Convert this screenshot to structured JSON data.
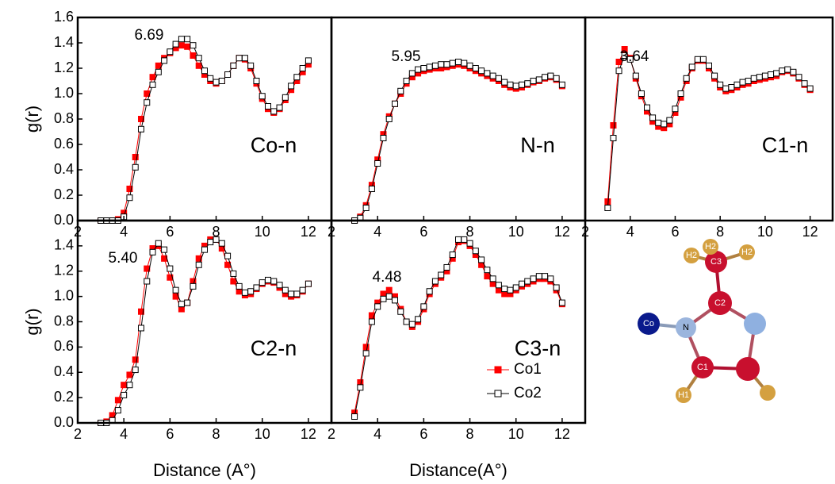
{
  "chart_data": [
    {
      "type": "line",
      "label": "Co-n",
      "annotation": "6.69",
      "y_label": "g(r)",
      "legend": false,
      "x": [
        3,
        3.25,
        3.5,
        3.75,
        4,
        4.25,
        4.5,
        4.75,
        5,
        5.25,
        5.5,
        5.75,
        6,
        6.25,
        6.5,
        6.75,
        7,
        7.25,
        7.5,
        7.75,
        8,
        8.25,
        8.5,
        8.75,
        9,
        9.25,
        9.5,
        9.75,
        10,
        10.25,
        10.5,
        10.75,
        11,
        11.25,
        11.5,
        11.75,
        12
      ],
      "series": [
        {
          "name": "Co1",
          "color": "#ff0000",
          "values": [
            0,
            0,
            0,
            0.01,
            0.06,
            0.25,
            0.5,
            0.8,
            1.0,
            1.13,
            1.22,
            1.28,
            1.32,
            1.36,
            1.38,
            1.37,
            1.3,
            1.22,
            1.15,
            1.1,
            1.08,
            1.1,
            1.15,
            1.22,
            1.28,
            1.27,
            1.2,
            1.08,
            0.96,
            0.88,
            0.85,
            0.88,
            0.95,
            1.03,
            1.1,
            1.17,
            1.23
          ]
        },
        {
          "name": "Co2",
          "color": "#000000",
          "values": [
            0,
            0,
            0,
            0,
            0.03,
            0.18,
            0.42,
            0.72,
            0.93,
            1.07,
            1.17,
            1.26,
            1.33,
            1.39,
            1.43,
            1.43,
            1.38,
            1.28,
            1.18,
            1.12,
            1.09,
            1.1,
            1.15,
            1.22,
            1.28,
            1.28,
            1.22,
            1.1,
            0.98,
            0.9,
            0.86,
            0.89,
            0.97,
            1.06,
            1.13,
            1.2,
            1.26
          ]
        }
      ],
      "xlim": [
        2,
        13
      ],
      "ylim": [
        0,
        1.6
      ],
      "xticks": [
        2,
        4,
        6,
        8,
        10,
        12
      ],
      "yticks": [
        {
          "value": 0,
          "label": "0.0"
        },
        {
          "value": 0.2,
          "label": "0.2"
        },
        {
          "value": 0.4,
          "label": "0.4"
        },
        {
          "value": 0.6,
          "label": "0.6"
        },
        {
          "value": 0.8,
          "label": "0.8"
        },
        {
          "value": 1,
          "label": "1.0"
        },
        {
          "value": 1.2,
          "label": "1.2"
        },
        {
          "value": 1.4,
          "label": "1.4"
        },
        {
          "value": 1.6,
          "label": "1.6"
        }
      ]
    },
    {
      "type": "line",
      "label": "N-n",
      "annotation": "5.95",
      "legend": false,
      "x": [
        3,
        3.25,
        3.5,
        3.75,
        4,
        4.25,
        4.5,
        4.75,
        5,
        5.25,
        5.5,
        5.75,
        6,
        6.25,
        6.5,
        6.75,
        7,
        7.25,
        7.5,
        7.75,
        8,
        8.25,
        8.5,
        8.75,
        9,
        9.25,
        9.5,
        9.75,
        10,
        10.25,
        10.5,
        10.75,
        11,
        11.25,
        11.5,
        11.75,
        12
      ],
      "series": [
        {
          "name": "Co1",
          "color": "#ff0000",
          "values": [
            0,
            0.03,
            0.12,
            0.28,
            0.48,
            0.68,
            0.82,
            0.92,
            1.0,
            1.08,
            1.13,
            1.16,
            1.18,
            1.19,
            1.2,
            1.2,
            1.21,
            1.22,
            1.23,
            1.22,
            1.2,
            1.18,
            1.16,
            1.14,
            1.12,
            1.1,
            1.07,
            1.05,
            1.04,
            1.05,
            1.07,
            1.09,
            1.1,
            1.12,
            1.13,
            1.11,
            1.06
          ]
        },
        {
          "name": "Co2",
          "color": "#000000",
          "values": [
            0,
            0.02,
            0.1,
            0.25,
            0.45,
            0.65,
            0.8,
            0.92,
            1.02,
            1.1,
            1.16,
            1.19,
            1.2,
            1.21,
            1.22,
            1.23,
            1.23,
            1.24,
            1.25,
            1.24,
            1.22,
            1.2,
            1.18,
            1.16,
            1.14,
            1.12,
            1.09,
            1.07,
            1.06,
            1.07,
            1.08,
            1.1,
            1.11,
            1.13,
            1.14,
            1.12,
            1.07
          ]
        }
      ],
      "xlim": [
        2,
        13
      ],
      "ylim": [
        0,
        1.6
      ],
      "xticks": [
        2,
        4,
        6,
        8,
        10,
        12
      ]
    },
    {
      "type": "line",
      "label": "C1-n",
      "annotation": "3.64",
      "legend": false,
      "x": [
        3,
        3.25,
        3.5,
        3.75,
        4,
        4.25,
        4.5,
        4.75,
        5,
        5.25,
        5.5,
        5.75,
        6,
        6.25,
        6.5,
        6.75,
        7,
        7.25,
        7.5,
        7.75,
        8,
        8.25,
        8.5,
        8.75,
        9,
        9.25,
        9.5,
        9.75,
        10,
        10.25,
        10.5,
        10.75,
        11,
        11.25,
        11.5,
        11.75,
        12
      ],
      "series": [
        {
          "name": "Co1",
          "color": "#ff0000",
          "values": [
            0.15,
            0.75,
            1.25,
            1.35,
            1.28,
            1.12,
            0.98,
            0.86,
            0.78,
            0.74,
            0.73,
            0.76,
            0.85,
            0.97,
            1.1,
            1.2,
            1.26,
            1.26,
            1.2,
            1.12,
            1.05,
            1.02,
            1.03,
            1.05,
            1.07,
            1.08,
            1.1,
            1.11,
            1.12,
            1.13,
            1.14,
            1.17,
            1.18,
            1.16,
            1.12,
            1.07,
            1.03
          ]
        },
        {
          "name": "Co2",
          "color": "#000000",
          "values": [
            0.1,
            0.65,
            1.18,
            1.3,
            1.27,
            1.14,
            1.0,
            0.89,
            0.81,
            0.77,
            0.76,
            0.79,
            0.88,
            1.0,
            1.12,
            1.21,
            1.27,
            1.27,
            1.22,
            1.14,
            1.07,
            1.04,
            1.05,
            1.07,
            1.09,
            1.1,
            1.12,
            1.13,
            1.14,
            1.15,
            1.16,
            1.18,
            1.19,
            1.17,
            1.13,
            1.08,
            1.04
          ]
        }
      ],
      "xlim": [
        2,
        13
      ],
      "ylim": [
        0,
        1.6
      ],
      "xticks": [
        2,
        4,
        6,
        8,
        10,
        12
      ]
    },
    {
      "type": "line",
      "label": "C2-n",
      "annotation": "5.40",
      "y_label": "g(r)",
      "x_label": "Distance (A°)",
      "legend": false,
      "x": [
        3,
        3.25,
        3.5,
        3.75,
        4,
        4.25,
        4.5,
        4.75,
        5,
        5.25,
        5.5,
        5.75,
        6,
        6.25,
        6.5,
        6.75,
        7,
        7.25,
        7.5,
        7.75,
        8,
        8.25,
        8.5,
        8.75,
        9,
        9.25,
        9.5,
        9.75,
        10,
        10.25,
        10.5,
        10.75,
        11,
        11.25,
        11.5,
        11.75,
        12
      ],
      "series": [
        {
          "name": "Co1",
          "color": "#ff0000",
          "values": [
            0,
            0.01,
            0.06,
            0.18,
            0.3,
            0.38,
            0.5,
            0.88,
            1.22,
            1.38,
            1.4,
            1.3,
            1.15,
            1.0,
            0.9,
            0.95,
            1.12,
            1.3,
            1.4,
            1.45,
            1.45,
            1.38,
            1.25,
            1.12,
            1.04,
            1.01,
            1.02,
            1.06,
            1.1,
            1.12,
            1.11,
            1.07,
            1.02,
            1.0,
            1.01,
            1.04,
            1.1
          ]
        },
        {
          "name": "Co2",
          "color": "#000000",
          "values": [
            0,
            0,
            0.02,
            0.1,
            0.22,
            0.3,
            0.42,
            0.75,
            1.12,
            1.35,
            1.42,
            1.37,
            1.22,
            1.05,
            0.94,
            0.95,
            1.08,
            1.25,
            1.37,
            1.43,
            1.45,
            1.42,
            1.32,
            1.18,
            1.08,
            1.03,
            1.04,
            1.07,
            1.11,
            1.13,
            1.12,
            1.09,
            1.05,
            1.02,
            1.02,
            1.05,
            1.1
          ]
        }
      ],
      "xlim": [
        2,
        13
      ],
      "ylim": [
        0,
        1.6
      ],
      "xticks": [
        2,
        4,
        6,
        8,
        10,
        12
      ],
      "yticks": [
        {
          "value": 0,
          "label": "0.0"
        },
        {
          "value": 0.2,
          "label": "0.2"
        },
        {
          "value": 0.4,
          "label": "0.4"
        },
        {
          "value": 0.6,
          "label": "0.6"
        },
        {
          "value": 0.8,
          "label": "0.8"
        },
        {
          "value": 1,
          "label": "1.0"
        },
        {
          "value": 1.2,
          "label": "1.2"
        },
        {
          "value": 1.4,
          "label": "1.4"
        }
      ]
    },
    {
      "type": "line",
      "label": "C3-n",
      "annotation": "4.48",
      "x_label": "Distance(A°)",
      "legend": true,
      "x": [
        3,
        3.25,
        3.5,
        3.75,
        4,
        4.25,
        4.5,
        4.75,
        5,
        5.25,
        5.5,
        5.75,
        6,
        6.25,
        6.5,
        6.75,
        7,
        7.25,
        7.5,
        7.75,
        8,
        8.25,
        8.5,
        8.75,
        9,
        9.25,
        9.5,
        9.75,
        10,
        10.25,
        10.5,
        10.75,
        11,
        11.25,
        11.5,
        11.75,
        12
      ],
      "series": [
        {
          "name": "Co1",
          "color": "#ff0000",
          "values": [
            0.08,
            0.32,
            0.6,
            0.85,
            0.95,
            1.02,
            1.05,
            1.0,
            0.9,
            0.8,
            0.76,
            0.8,
            0.9,
            1.02,
            1.1,
            1.15,
            1.2,
            1.3,
            1.43,
            1.44,
            1.4,
            1.33,
            1.25,
            1.16,
            1.1,
            1.05,
            1.02,
            1.02,
            1.05,
            1.08,
            1.1,
            1.12,
            1.14,
            1.14,
            1.12,
            1.05,
            0.94
          ]
        },
        {
          "name": "Co2",
          "color": "#000000",
          "values": [
            0.05,
            0.28,
            0.55,
            0.8,
            0.92,
            0.98,
            1.0,
            0.97,
            0.88,
            0.8,
            0.78,
            0.82,
            0.92,
            1.04,
            1.12,
            1.17,
            1.23,
            1.33,
            1.45,
            1.45,
            1.42,
            1.36,
            1.29,
            1.21,
            1.14,
            1.09,
            1.06,
            1.05,
            1.07,
            1.1,
            1.12,
            1.14,
            1.16,
            1.16,
            1.14,
            1.07,
            0.95
          ]
        }
      ],
      "xlim": [
        2,
        13
      ],
      "ylim": [
        0,
        1.6
      ],
      "xticks": [
        2,
        4,
        6,
        8,
        10,
        12
      ]
    }
  ],
  "molecule": {
    "atoms": [
      "Co",
      "N",
      "C2",
      "C3",
      "H2",
      "H2",
      "H2",
      "C1",
      "H1"
    ]
  }
}
